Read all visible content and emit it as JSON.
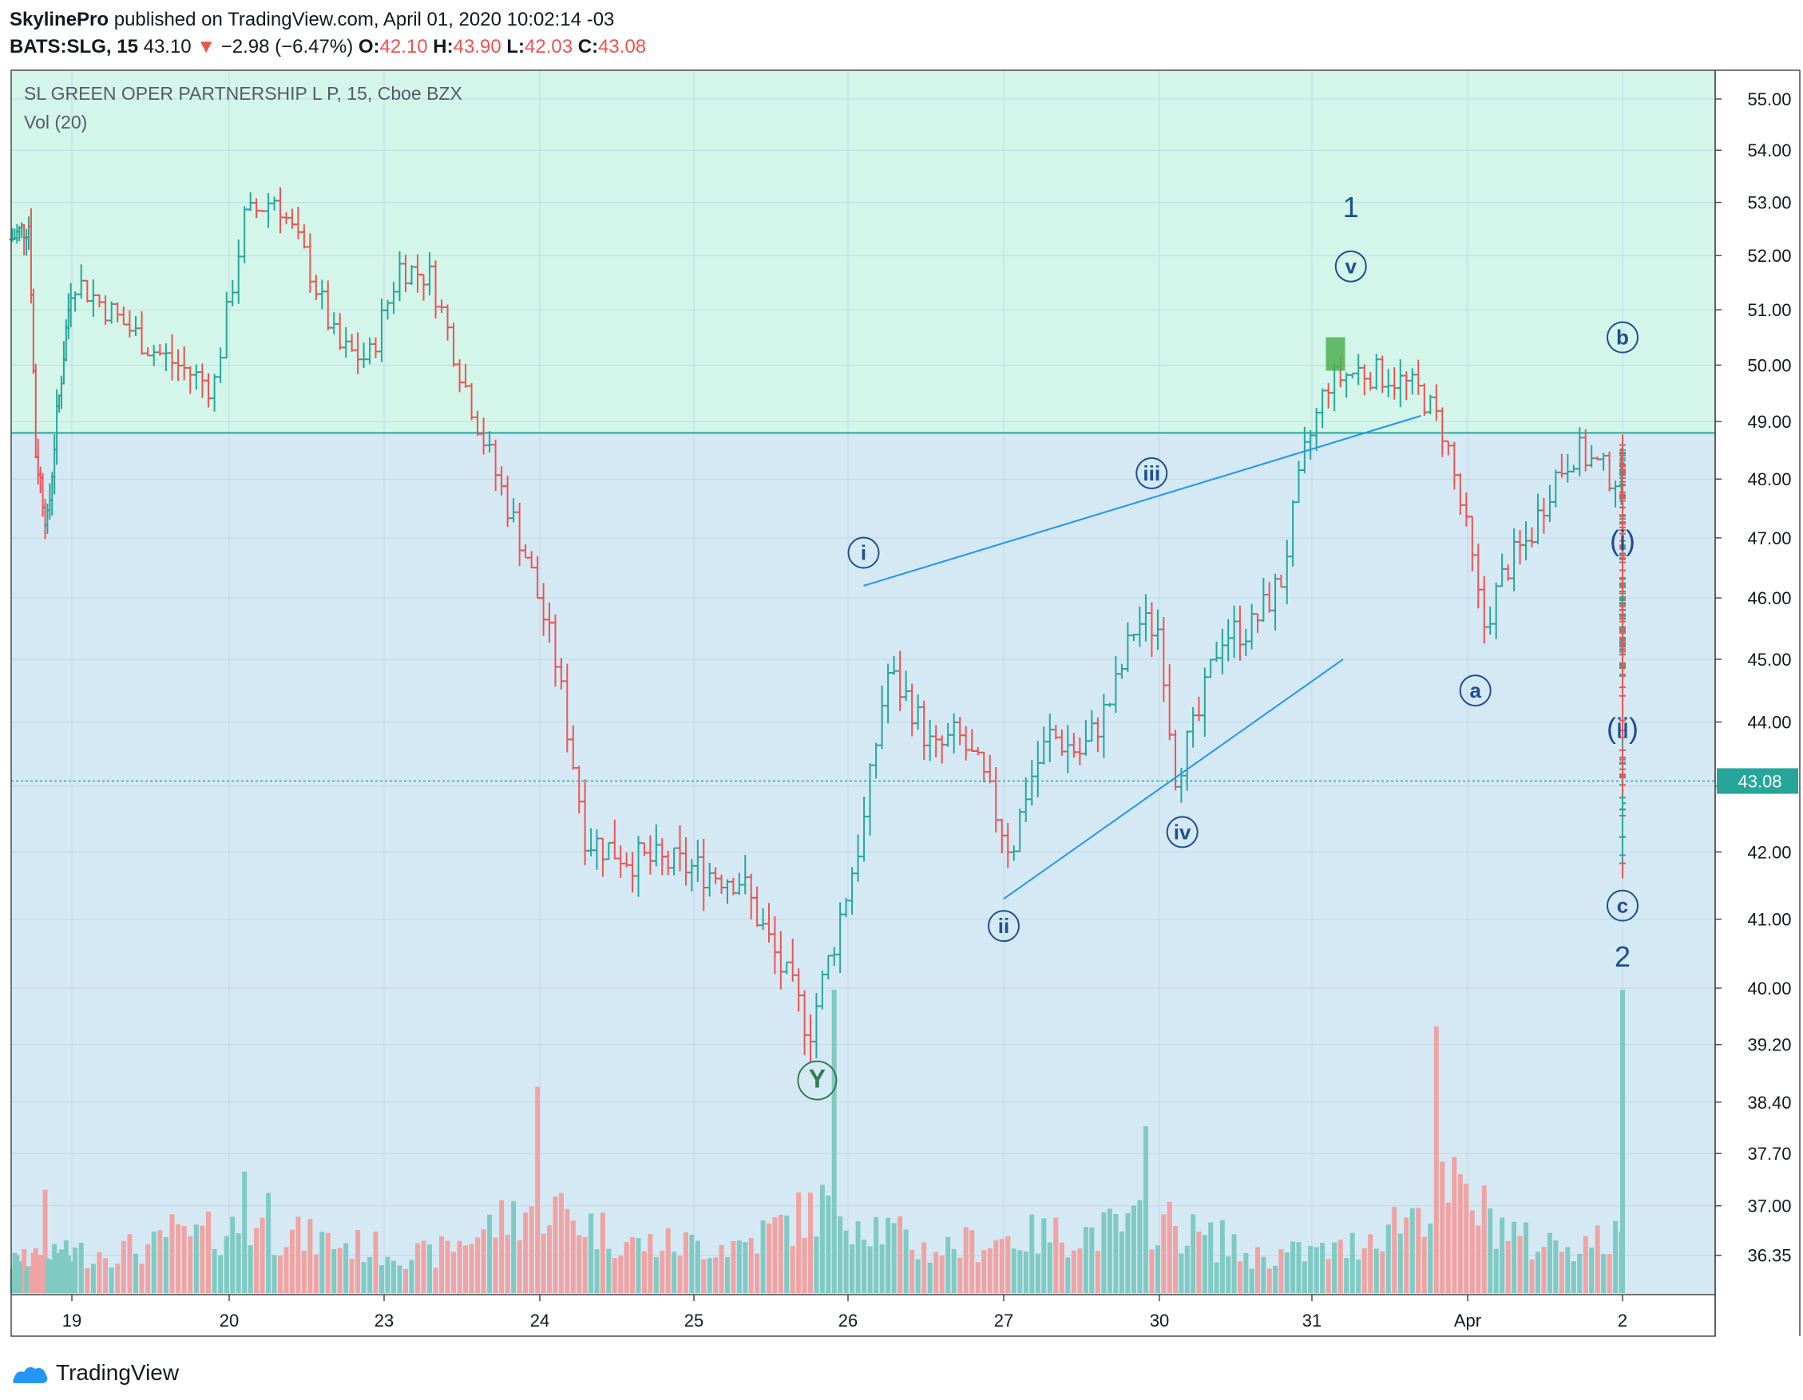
{
  "header": {
    "publisher": "SkylinePro",
    "published_text": "published on TradingView.com, April 01, 2020 10:02:14 -03",
    "symbol": "BATS:SLG, 15",
    "last": "43.10",
    "change_arrow": "▼",
    "change": "−2.98 (−6.47%)",
    "o_label": "O:",
    "o": "42.10",
    "h_label": "H:",
    "h": "43.90",
    "l_label": "L:",
    "l": "42.03",
    "c_label": "C:",
    "c": "43.08"
  },
  "legend": {
    "title": "SL GREEN OPER PARTNERSHIP L P, 15, Cboe BZX",
    "volume": "Vol (20)"
  },
  "footer": {
    "brand": "TradingView",
    "logo_icon": "tradingview-logo-icon"
  },
  "colors": {
    "up": "#26a69a",
    "down": "#ef5350",
    "zone_upper": "#d3f5ea",
    "zone_lower": "#d5e9f5",
    "zone_line": "#26a69a",
    "trendline": "#2196f3",
    "wave_label": "#1e4f8f",
    "y_label": "#2e7d4f",
    "price_tag_bg": "#26a69a",
    "vol_up": "#7fcac3",
    "vol_down": "#f0a3a3"
  },
  "chart_data": {
    "type": "ohlc",
    "interval": "15",
    "y_axis_ticks": [
      "55.00",
      "54.00",
      "53.00",
      "52.00",
      "51.00",
      "50.00",
      "49.00",
      "48.00",
      "47.00",
      "46.00",
      "45.00",
      "44.00",
      "43.00",
      "42.00",
      "41.00",
      "40.00",
      "39.20",
      "38.40",
      "37.70",
      "37.00",
      "36.35"
    ],
    "y_axis_tick_values": [
      55.0,
      54.0,
      53.0,
      52.0,
      51.0,
      50.0,
      49.0,
      48.0,
      47.0,
      46.0,
      45.0,
      44.0,
      43.0,
      42.0,
      41.0,
      40.0,
      39.2,
      38.4,
      37.7,
      37.0,
      36.35
    ],
    "y_scale": "log",
    "x_axis_ticks": [
      "19",
      "20",
      "23",
      "24",
      "25",
      "26",
      "27",
      "30",
      "31",
      "Apr",
      "2"
    ],
    "last_price_tag": "43.08",
    "last_price": 43.08,
    "zone_boundary_price": 48.8,
    "price_path": [
      {
        "x": 0.0,
        "y": 52.3
      },
      {
        "x": 0.3,
        "y": 52.6
      },
      {
        "x": 0.4,
        "y": 48.5
      },
      {
        "x": 0.6,
        "y": 47.2
      },
      {
        "x": 0.7,
        "y": 48.5
      },
      {
        "x": 1.0,
        "y": 51.6
      },
      {
        "x": 1.5,
        "y": 50.3
      },
      {
        "x": 1.9,
        "y": 49.6
      },
      {
        "x": 2.1,
        "y": 52.7
      },
      {
        "x": 2.3,
        "y": 53.1
      },
      {
        "x": 2.5,
        "y": 51.9
      },
      {
        "x": 2.7,
        "y": 50.3
      },
      {
        "x": 2.9,
        "y": 50.1
      },
      {
        "x": 3.1,
        "y": 51.8
      },
      {
        "x": 3.3,
        "y": 51.6
      },
      {
        "x": 3.5,
        "y": 49.8
      },
      {
        "x": 3.7,
        "y": 48.2
      },
      {
        "x": 3.9,
        "y": 46.8
      },
      {
        "x": 4.1,
        "y": 45.0
      },
      {
        "x": 4.3,
        "y": 42.2
      },
      {
        "x": 4.6,
        "y": 41.9
      },
      {
        "x": 4.9,
        "y": 41.8
      },
      {
        "x": 5.3,
        "y": 41.6
      },
      {
        "x": 5.5,
        "y": 40.6
      },
      {
        "x": 5.75,
        "y": 39.4
      },
      {
        "x": 5.9,
        "y": 40.6
      },
      {
        "x": 6.1,
        "y": 42.4
      },
      {
        "x": 6.25,
        "y": 44.8
      },
      {
        "x": 6.4,
        "y": 44.3
      },
      {
        "x": 6.55,
        "y": 43.5
      },
      {
        "x": 6.7,
        "y": 43.8
      },
      {
        "x": 6.85,
        "y": 43.2
      },
      {
        "x": 7.05,
        "y": 42.0
      },
      {
        "x": 7.15,
        "y": 43.0
      },
      {
        "x": 7.3,
        "y": 43.8
      },
      {
        "x": 7.5,
        "y": 43.5
      },
      {
        "x": 7.7,
        "y": 44.4
      },
      {
        "x": 7.85,
        "y": 45.6
      },
      {
        "x": 8.0,
        "y": 45.5
      },
      {
        "x": 8.1,
        "y": 43.2
      },
      {
        "x": 8.25,
        "y": 44.0
      },
      {
        "x": 8.4,
        "y": 45.4
      },
      {
        "x": 8.6,
        "y": 45.5
      },
      {
        "x": 8.8,
        "y": 46.3
      },
      {
        "x": 8.95,
        "y": 48.4
      },
      {
        "x": 9.1,
        "y": 49.7
      },
      {
        "x": 9.3,
        "y": 49.9
      },
      {
        "x": 9.5,
        "y": 49.8
      },
      {
        "x": 9.7,
        "y": 49.5
      },
      {
        "x": 9.85,
        "y": 48.8
      },
      {
        "x": 10.0,
        "y": 47.0
      },
      {
        "x": 10.1,
        "y": 45.5
      },
      {
        "x": 10.25,
        "y": 46.5
      },
      {
        "x": 10.4,
        "y": 47.0
      },
      {
        "x": 10.55,
        "y": 48.0
      },
      {
        "x": 10.7,
        "y": 48.5
      },
      {
        "x": 10.9,
        "y": 48.1
      },
      {
        "x": 11.1,
        "y": 47.9
      },
      {
        "x": 11.3,
        "y": 48.1
      },
      {
        "x": 11.45,
        "y": 48.3
      },
      {
        "x": 11.55,
        "y": 48.2
      },
      {
        "x": 11.75,
        "y": 45.5
      },
      {
        "x": 11.9,
        "y": 45.2
      },
      {
        "x": 12.1,
        "y": 46.3
      },
      {
        "x": 12.3,
        "y": 46.8
      },
      {
        "x": 12.5,
        "y": 46.8
      },
      {
        "x": 12.7,
        "y": 47.4
      },
      {
        "x": 12.9,
        "y": 47.8
      },
      {
        "x": 13.1,
        "y": 48.3
      },
      {
        "x": 13.25,
        "y": 48.4
      },
      {
        "x": 13.4,
        "y": 47.9
      },
      {
        "x": 13.55,
        "y": 46.0
      },
      {
        "x": 13.7,
        "y": 45.1
      },
      {
        "x": 13.9,
        "y": 45.0
      },
      {
        "x": 14.05,
        "y": 45.5
      },
      {
        "x": 14.2,
        "y": 46.0
      },
      {
        "x": 14.4,
        "y": 46.2
      },
      {
        "x": 14.6,
        "y": 45.7
      },
      {
        "x": 14.8,
        "y": 45.3
      },
      {
        "x": 15.0,
        "y": 45.5
      },
      {
        "x": 15.15,
        "y": 45.8
      },
      {
        "x": 15.3,
        "y": 45.1
      },
      {
        "x": 15.45,
        "y": 44.9
      },
      {
        "x": 15.6,
        "y": 45.0
      },
      {
        "x": 15.75,
        "y": 45.1
      },
      {
        "x": 15.9,
        "y": 44.6
      },
      {
        "x": 16.05,
        "y": 43.7
      },
      {
        "x": 16.2,
        "y": 43.1
      },
      {
        "x": 16.35,
        "y": 43.2
      },
      {
        "x": 16.45,
        "y": 43.5
      },
      {
        "x": 16.6,
        "y": 42.8
      },
      {
        "x": 16.7,
        "y": 42.0
      },
      {
        "x": 16.8,
        "y": 42.3
      },
      {
        "x": 16.85,
        "y": 43.1
      }
    ],
    "volume_profile": [
      {
        "x": 0.0,
        "v": 0.1
      },
      {
        "x": 0.8,
        "v": 0.12
      },
      {
        "x": 1.5,
        "v": 0.15
      },
      {
        "x": 2.1,
        "v": 0.22
      },
      {
        "x": 2.5,
        "v": 0.18
      },
      {
        "x": 3.3,
        "v": 0.12
      },
      {
        "x": 4.0,
        "v": 0.3
      },
      {
        "x": 4.6,
        "v": 0.16
      },
      {
        "x": 5.3,
        "v": 0.16
      },
      {
        "x": 5.9,
        "v": 0.3
      },
      {
        "x": 6.5,
        "v": 0.14
      },
      {
        "x": 7.0,
        "v": 0.18
      },
      {
        "x": 7.6,
        "v": 0.2
      },
      {
        "x": 8.0,
        "v": 0.24
      },
      {
        "x": 8.6,
        "v": 0.12
      },
      {
        "x": 9.2,
        "v": 0.14
      },
      {
        "x": 9.9,
        "v": 0.34
      },
      {
        "x": 10.4,
        "v": 0.16
      },
      {
        "x": 11.2,
        "v": 0.18
      },
      {
        "x": 11.8,
        "v": 0.14
      },
      {
        "x": 12.5,
        "v": 0.12
      },
      {
        "x": 13.3,
        "v": 0.14
      },
      {
        "x": 13.9,
        "v": 0.11
      },
      {
        "x": 14.5,
        "v": 0.1
      },
      {
        "x": 15.1,
        "v": 0.2
      },
      {
        "x": 15.6,
        "v": 0.1
      },
      {
        "x": 16.2,
        "v": 0.1
      },
      {
        "x": 16.5,
        "v": 0.1
      },
      {
        "x": 16.65,
        "v": 0.5
      },
      {
        "x": 16.85,
        "v": 1.0
      }
    ],
    "volume_spikes": [
      {
        "x": 0.55,
        "v": 0.34,
        "dir": "up"
      },
      {
        "x": 1.65,
        "v": 0.26,
        "dir": "down"
      },
      {
        "x": 2.1,
        "v": 0.4,
        "dir": "down"
      },
      {
        "x": 2.25,
        "v": 0.33,
        "dir": "up"
      },
      {
        "x": 4.0,
        "v": 0.68,
        "dir": "down"
      },
      {
        "x": 5.9,
        "v": 1.0,
        "dir": "up"
      },
      {
        "x": 7.9,
        "v": 0.55,
        "dir": "up"
      },
      {
        "x": 8.4,
        "v": 0.24,
        "dir": "down"
      },
      {
        "x": 9.8,
        "v": 0.88,
        "dir": "down"
      },
      {
        "x": 11.6,
        "v": 0.6,
        "dir": "up"
      },
      {
        "x": 13.3,
        "v": 0.7,
        "dir": "down"
      },
      {
        "x": 15.0,
        "v": 0.5,
        "dir": "up"
      },
      {
        "x": 16.8,
        "v": 1.0,
        "dir": "up"
      }
    ],
    "annotations": [
      {
        "text": "1",
        "style": "plain",
        "x": 9.25,
        "y": 52.9
      },
      {
        "text": "v",
        "style": "circled",
        "x": 9.25,
        "y": 51.8
      },
      {
        "text": "i",
        "style": "circled",
        "x": 6.1,
        "y": 46.75
      },
      {
        "text": "ii",
        "style": "circled",
        "x": 7.0,
        "y": 40.9
      },
      {
        "text": "iii",
        "style": "circled",
        "x": 7.95,
        "y": 48.1
      },
      {
        "text": "iv",
        "style": "circled",
        "x": 8.15,
        "y": 42.3
      },
      {
        "text": "a",
        "style": "circled",
        "x": 10.05,
        "y": 44.5
      },
      {
        "text": "b",
        "style": "circled",
        "x": 13.3,
        "y": 50.5
      },
      {
        "text": "(i)",
        "style": "plain",
        "x": 14.4,
        "y": 46.95
      },
      {
        "text": "(ii)",
        "style": "plain",
        "x": 15.4,
        "y": 43.9
      },
      {
        "text": "c",
        "style": "circled",
        "x": 16.9,
        "y": 41.2
      },
      {
        "text": "2",
        "style": "plain",
        "x": 16.9,
        "y": 40.45
      },
      {
        "text": "Y",
        "style": "circled-green",
        "x": 5.8,
        "y": 38.7
      }
    ],
    "trendlines": [
      {
        "x1": 6.1,
        "y1": 46.2,
        "x2": 9.7,
        "y2": 49.1
      },
      {
        "x1": 7.0,
        "y1": 41.3,
        "x2": 9.2,
        "y2": 45.0
      }
    ],
    "marker_box": {
      "x": 9.1,
      "y_low": 49.9,
      "y_high": 50.5
    }
  }
}
